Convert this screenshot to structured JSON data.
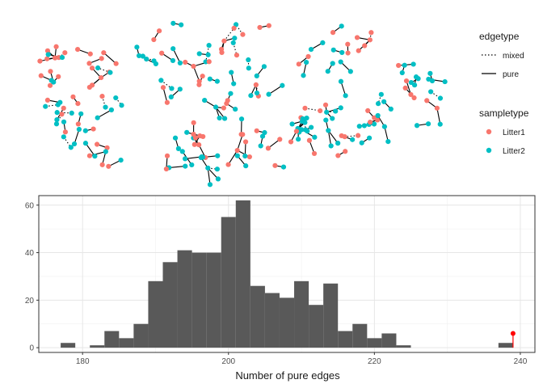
{
  "network_legend": {
    "edgetype": {
      "title": "edgetype",
      "items": [
        {
          "label": "mixed",
          "style": "dotted"
        },
        {
          "label": "pure",
          "style": "solid"
        }
      ]
    },
    "sampletype": {
      "title": "sampletype",
      "items": [
        {
          "label": "Litter1",
          "color": "#F8766D"
        },
        {
          "label": "Litter2",
          "color": "#00BFC4"
        }
      ]
    }
  },
  "chart_data": [
    {
      "type": "network",
      "description_layout": "elliptical cloud of small connected components",
      "node_colors": {
        "Litter1": "#F8766D",
        "Litter2": "#00BFC4"
      }
    },
    {
      "type": "bar",
      "subtype": "histogram",
      "xlabel": "Number of pure edges",
      "ylabel": "",
      "xlim": [
        174,
        242
      ],
      "ylim": [
        -2,
        64
      ],
      "xticks": [
        180,
        200,
        220,
        240
      ],
      "yticks": [
        0,
        20,
        40,
        60
      ],
      "binwidth": 2,
      "bins": [
        {
          "x": 178,
          "count": 2
        },
        {
          "x": 180,
          "count": 0
        },
        {
          "x": 182,
          "count": 1
        },
        {
          "x": 184,
          "count": 7
        },
        {
          "x": 186,
          "count": 4
        },
        {
          "x": 188,
          "count": 10
        },
        {
          "x": 190,
          "count": 28
        },
        {
          "x": 192,
          "count": 36
        },
        {
          "x": 194,
          "count": 41
        },
        {
          "x": 196,
          "count": 40
        },
        {
          "x": 198,
          "count": 40
        },
        {
          "x": 200,
          "count": 55
        },
        {
          "x": 202,
          "count": 62
        },
        {
          "x": 204,
          "count": 26
        },
        {
          "x": 206,
          "count": 23
        },
        {
          "x": 208,
          "count": 21
        },
        {
          "x": 210,
          "count": 28
        },
        {
          "x": 212,
          "count": 18
        },
        {
          "x": 214,
          "count": 27
        },
        {
          "x": 216,
          "count": 7
        },
        {
          "x": 218,
          "count": 10
        },
        {
          "x": 220,
          "count": 4
        },
        {
          "x": 222,
          "count": 6
        },
        {
          "x": 224,
          "count": 1
        },
        {
          "x": 226,
          "count": 0
        },
        {
          "x": 238,
          "count": 2
        }
      ],
      "observed": {
        "x": 239,
        "y": 6,
        "color": "#FF0000"
      },
      "grid": true
    }
  ]
}
